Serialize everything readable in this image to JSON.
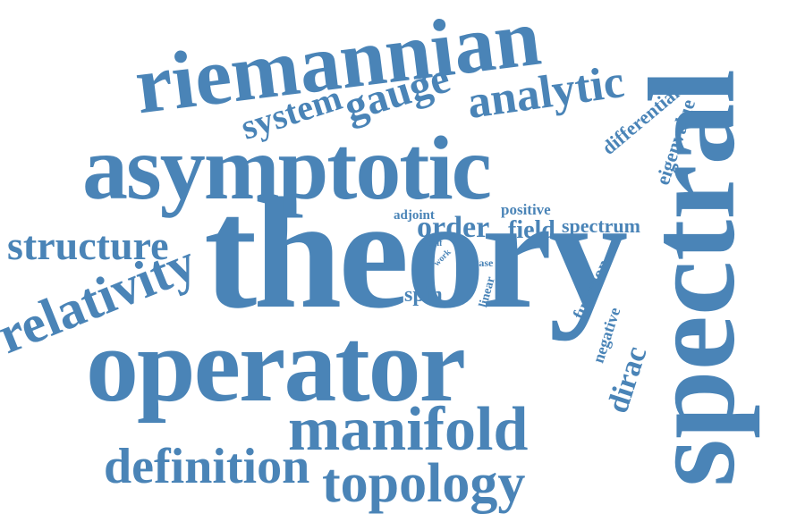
{
  "words": {
    "theory": "theory",
    "operator": "operator",
    "asymptotic": "asymptotic",
    "spectral": "spectral",
    "riemannian": "riemannian",
    "manifold": "manifold",
    "topology": "topology",
    "definition": "definition",
    "relativity": "relativity",
    "structure": "structure",
    "analytic": "analytic",
    "gauge": "gauge",
    "system": "system",
    "differential": "differential",
    "eigenvalue": "eigenvalue",
    "adjoint": "adjoint",
    "positive": "positive",
    "order": "order",
    "field": "field",
    "spectrum": "spectrum",
    "self": "self",
    "work": "work",
    "case": "case",
    "linear": "linear",
    "spin": "spin",
    "function": "function",
    "negative": "negative",
    "dirac": "dirac"
  },
  "colors": {
    "word": "#4a84b7",
    "background": "#ffffff"
  }
}
